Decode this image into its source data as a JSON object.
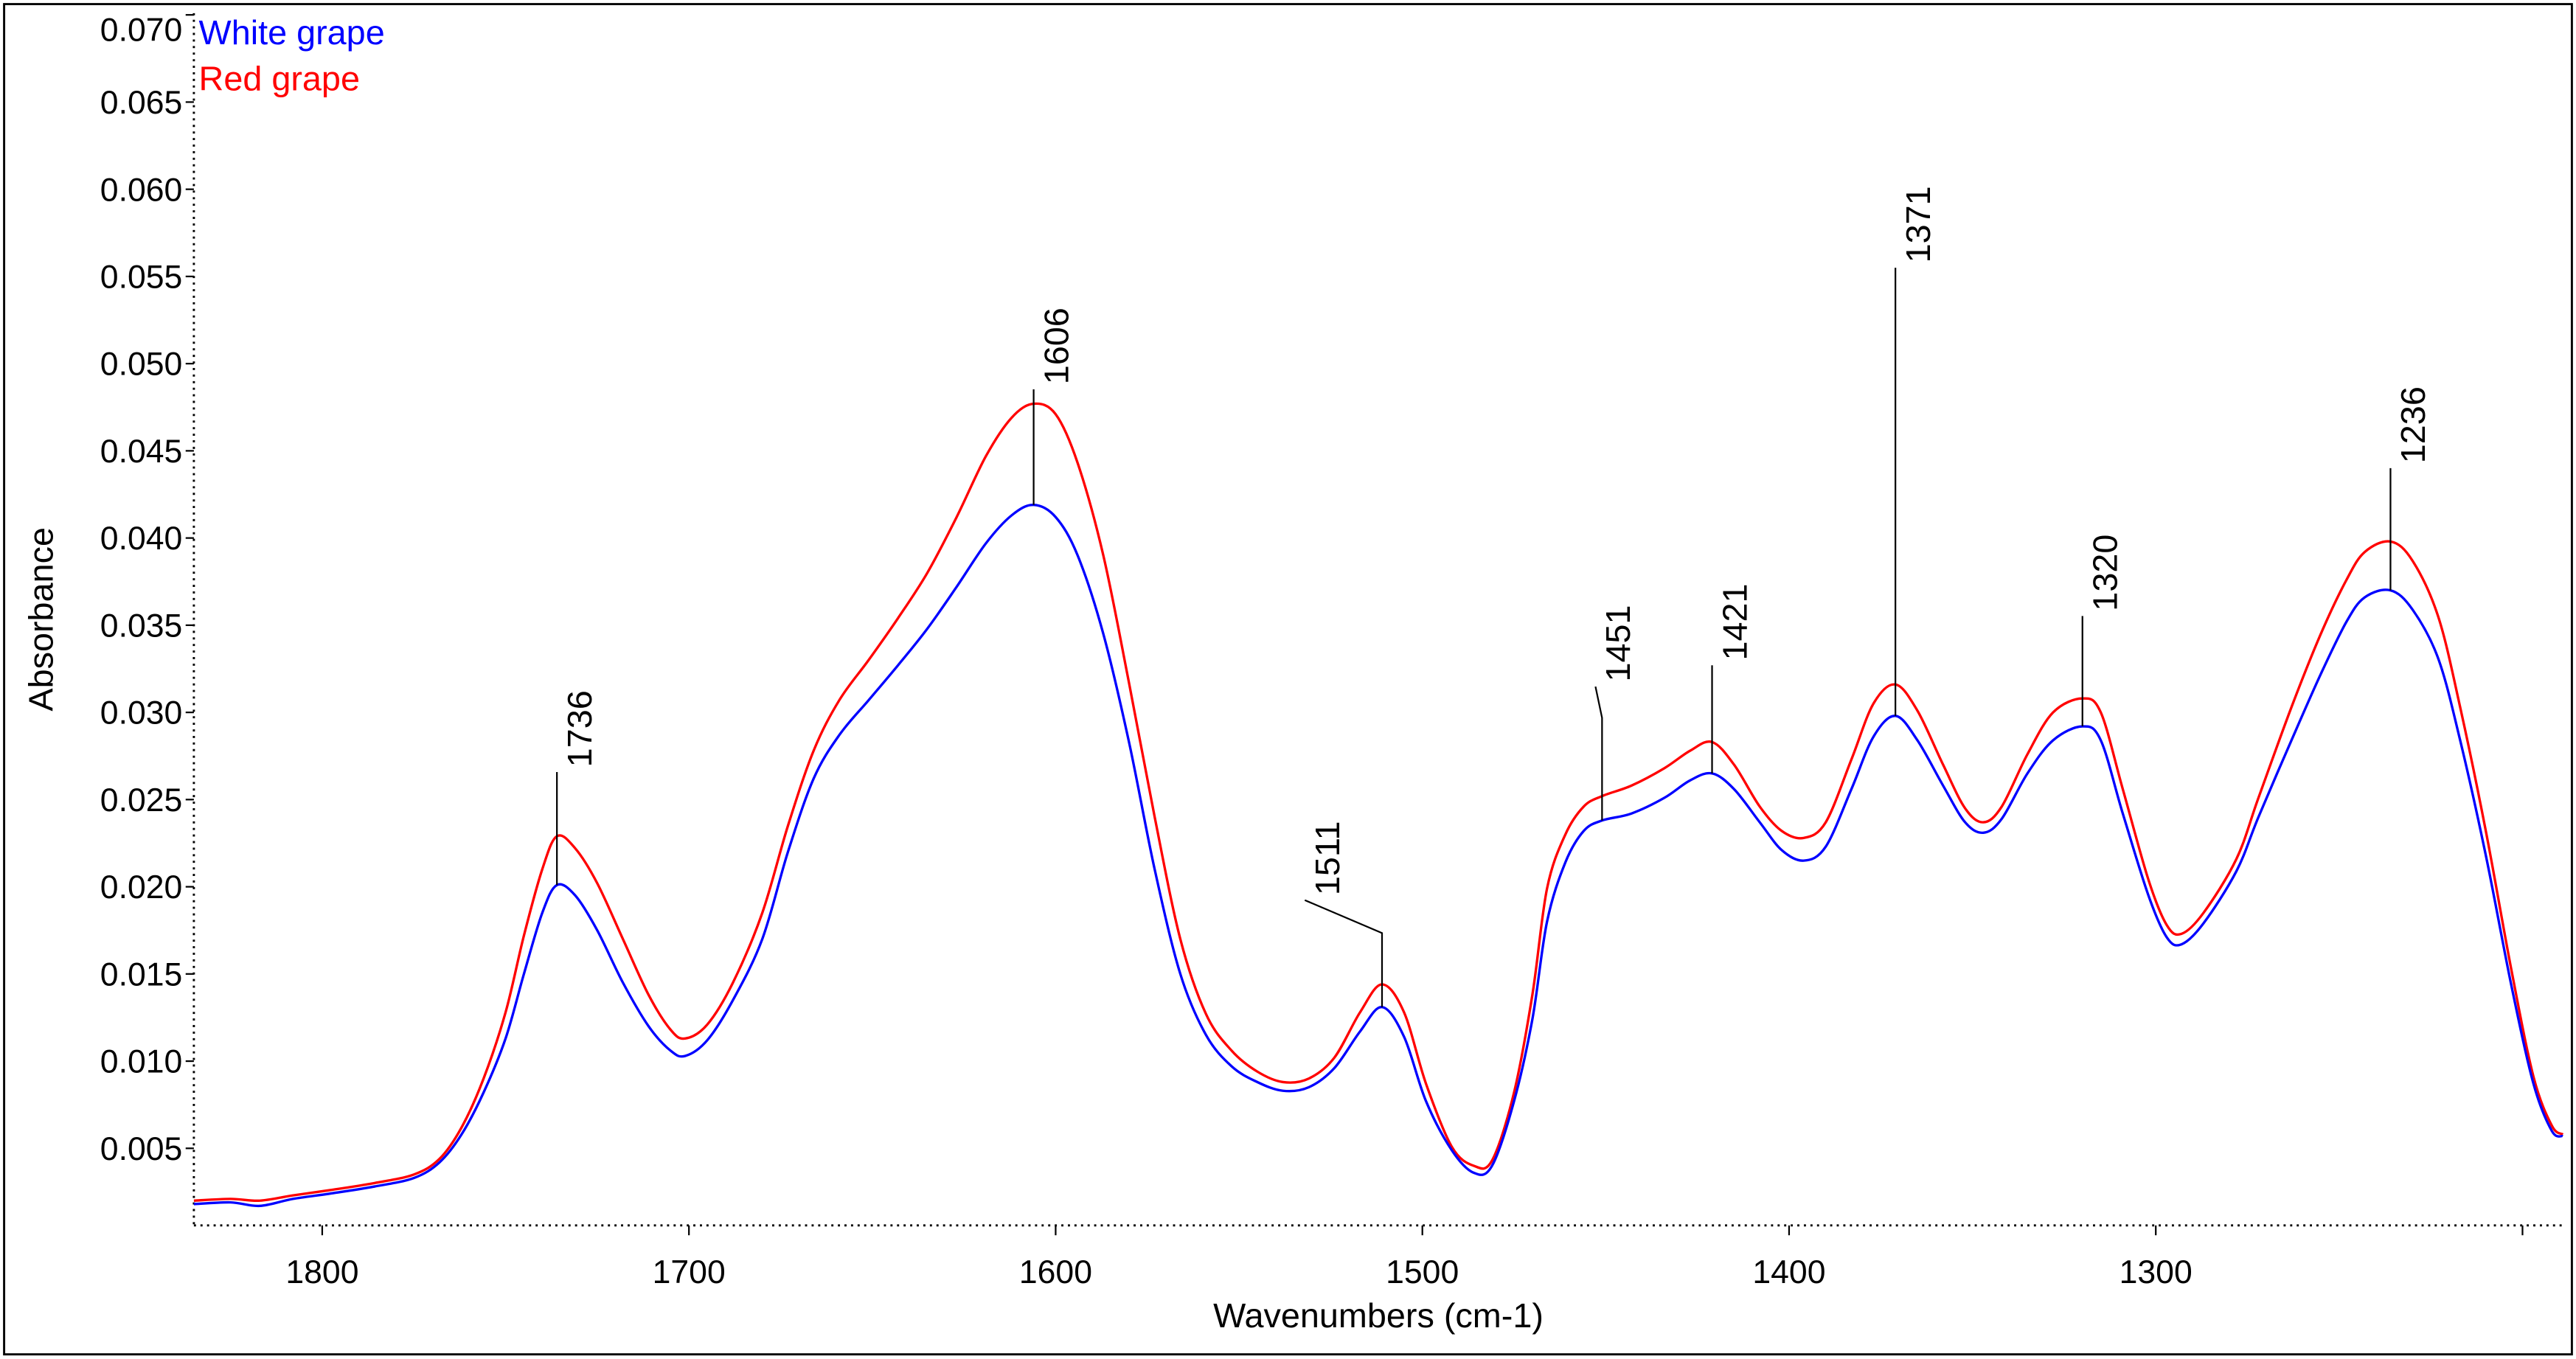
{
  "chart_data": {
    "type": "line",
    "xlabel": "Wavenumbers (cm-1)",
    "ylabel": "Absorbance",
    "xlim": [
      1835,
      1189
    ],
    "ylim": [
      0.00058,
      0.0701
    ],
    "x_reversed": true,
    "grid": false,
    "legend_position": "top-left",
    "x_ticks": [
      1800,
      1700,
      1600,
      1500,
      1400,
      1300,
      1200
    ],
    "x_tick_labels": [
      "1800",
      "1700",
      "1600",
      "1500",
      "1400",
      "1300",
      ""
    ],
    "y_ticks": [
      0.005,
      0.01,
      0.015,
      0.02,
      0.025,
      0.03,
      0.035,
      0.04,
      0.045,
      0.05,
      0.055,
      0.06,
      0.065,
      0.07
    ],
    "y_tick_labels": [
      "0.005",
      "0.010",
      "0.015",
      "0.020",
      "0.025",
      "0.030",
      "0.035",
      "0.040",
      "0.045",
      "0.050",
      "0.055",
      "0.060",
      "0.065",
      "0.070"
    ],
    "x": [
      1835,
      1825,
      1817,
      1808,
      1798,
      1786,
      1775,
      1768,
      1762,
      1756,
      1750,
      1745,
      1740,
      1736,
      1731,
      1725,
      1718,
      1711,
      1705,
      1701,
      1695,
      1688,
      1680,
      1673,
      1666,
      1659,
      1651,
      1643,
      1635,
      1627,
      1619,
      1612,
      1606,
      1600,
      1594,
      1587,
      1580,
      1573,
      1566,
      1559,
      1552,
      1545,
      1538,
      1531,
      1524,
      1517,
      1511,
      1505,
      1499,
      1492,
      1486,
      1481,
      1475,
      1470,
      1466,
      1461,
      1456,
      1451,
      1443,
      1434,
      1427,
      1421,
      1415,
      1408,
      1402,
      1396,
      1390,
      1383,
      1377,
      1371,
      1365,
      1358,
      1352,
      1347,
      1342,
      1335,
      1328,
      1320,
      1315,
      1309,
      1302,
      1297,
      1293,
      1287,
      1278,
      1272,
      1263,
      1255,
      1248,
      1243,
      1236,
      1230,
      1223,
      1217,
      1210,
      1203,
      1197,
      1192,
      1189
    ],
    "series": [
      {
        "name": "White grape",
        "color": "#0000FF",
        "values": [
          0.0018,
          0.0019,
          0.0017,
          0.0021,
          0.0024,
          0.0028,
          0.0033,
          0.0042,
          0.0058,
          0.0082,
          0.0113,
          0.015,
          0.0185,
          0.0201,
          0.0195,
          0.0175,
          0.0145,
          0.012,
          0.0106,
          0.0103,
          0.0112,
          0.0135,
          0.017,
          0.022,
          0.0262,
          0.0287,
          0.0307,
          0.0327,
          0.0348,
          0.0372,
          0.0397,
          0.0413,
          0.0419,
          0.0412,
          0.039,
          0.0345,
          0.0283,
          0.021,
          0.015,
          0.0115,
          0.0097,
          0.0088,
          0.0083,
          0.0085,
          0.0096,
          0.0117,
          0.0131,
          0.0114,
          0.0077,
          0.0049,
          0.0036,
          0.004,
          0.0077,
          0.0124,
          0.018,
          0.0214,
          0.0232,
          0.0238,
          0.0242,
          0.0251,
          0.0261,
          0.0265,
          0.0256,
          0.0237,
          0.0221,
          0.0215,
          0.0223,
          0.0256,
          0.0286,
          0.0298,
          0.0284,
          0.0258,
          0.0237,
          0.0231,
          0.0239,
          0.0265,
          0.0284,
          0.0292,
          0.0284,
          0.0242,
          0.0195,
          0.0171,
          0.0167,
          0.0179,
          0.0209,
          0.024,
          0.0284,
          0.0322,
          0.0352,
          0.0366,
          0.037,
          0.0359,
          0.0331,
          0.0284,
          0.0218,
          0.0143,
          0.0087,
          0.006,
          0.0057
        ]
      },
      {
        "name": "Red grape",
        "color": "#FF0000",
        "values": [
          0.002,
          0.0021,
          0.002,
          0.0023,
          0.0026,
          0.003,
          0.0035,
          0.0044,
          0.0062,
          0.009,
          0.0128,
          0.0172,
          0.021,
          0.0229,
          0.0222,
          0.0202,
          0.017,
          0.0138,
          0.0118,
          0.0113,
          0.0121,
          0.0145,
          0.0185,
          0.0235,
          0.0278,
          0.0307,
          0.033,
          0.0354,
          0.038,
          0.0412,
          0.0447,
          0.0469,
          0.0477,
          0.0471,
          0.0443,
          0.039,
          0.0317,
          0.024,
          0.017,
          0.0127,
          0.0106,
          0.0094,
          0.0088,
          0.009,
          0.0102,
          0.0128,
          0.0144,
          0.0128,
          0.0087,
          0.0051,
          0.004,
          0.0043,
          0.0082,
          0.0138,
          0.0199,
          0.023,
          0.0246,
          0.0252,
          0.0258,
          0.0268,
          0.0278,
          0.0283,
          0.027,
          0.0246,
          0.0232,
          0.0228,
          0.0237,
          0.0273,
          0.0305,
          0.0316,
          0.0301,
          0.027,
          0.0245,
          0.0237,
          0.0246,
          0.0276,
          0.03,
          0.0308,
          0.03,
          0.0256,
          0.0204,
          0.0178,
          0.0173,
          0.0185,
          0.0216,
          0.0251,
          0.0303,
          0.0345,
          0.0376,
          0.0392,
          0.0398,
          0.0387,
          0.0355,
          0.0303,
          0.0232,
          0.0152,
          0.0091,
          0.0063,
          0.0058
        ]
      }
    ],
    "annotations": [
      {
        "label": "1736",
        "x": 1736
      },
      {
        "label": "1606",
        "x": 1606
      },
      {
        "label": "1511",
        "x": 1511
      },
      {
        "label": "1451",
        "x": 1451
      },
      {
        "label": "1421",
        "x": 1421
      },
      {
        "label": "1371",
        "x": 1371
      },
      {
        "label": "1320",
        "x": 1320
      },
      {
        "label": "1236",
        "x": 1236
      }
    ]
  }
}
